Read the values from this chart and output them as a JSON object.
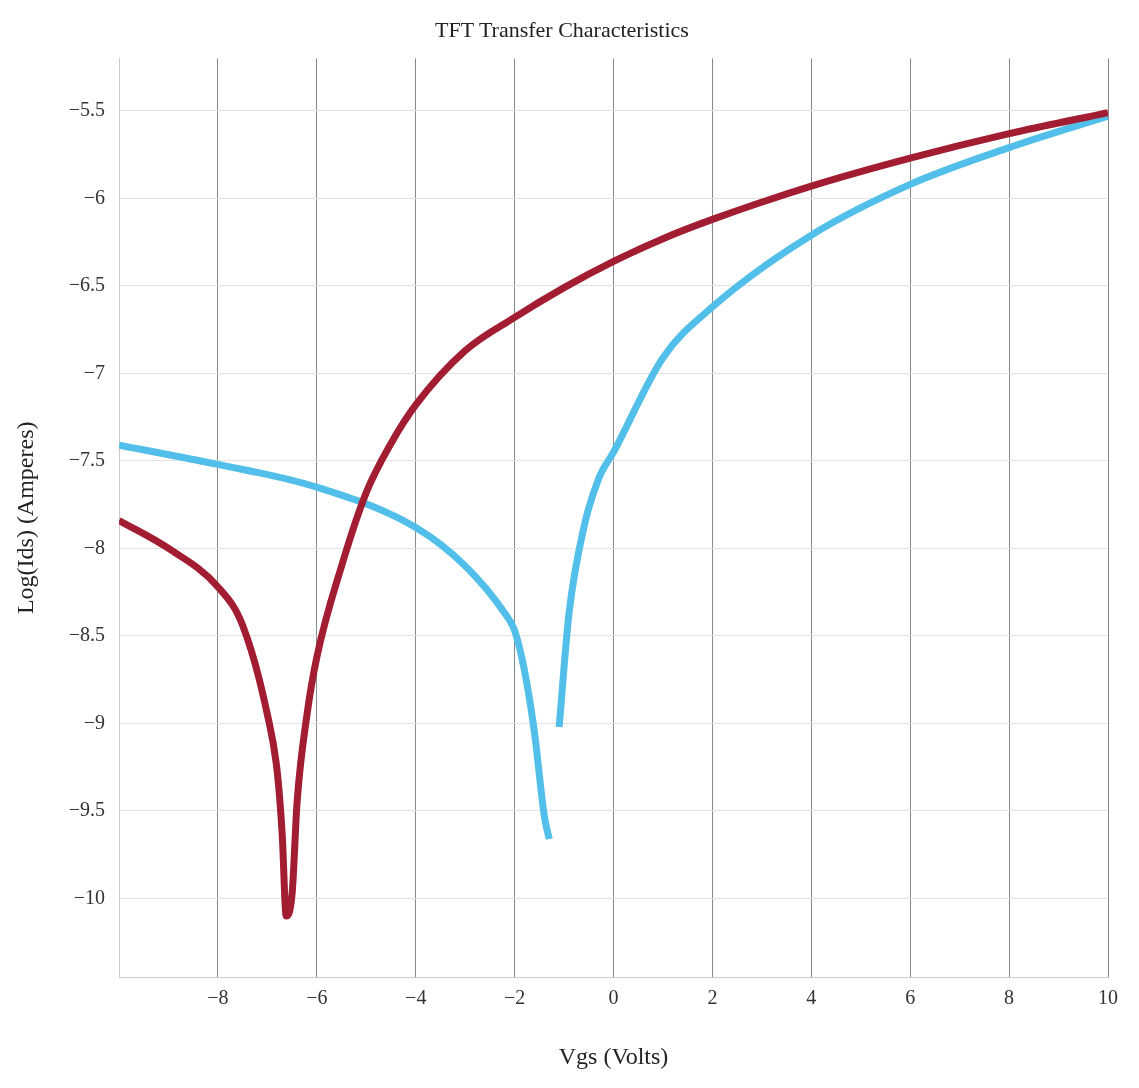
{
  "chart_data": {
    "type": "line",
    "title": "TFT Transfer Characteristics",
    "xlabel": "Vgs (Volts)",
    "ylabel": "Log(Ids) (Amperes)",
    "xlim": [
      -10,
      10
    ],
    "xticks": [
      {
        "value": -8,
        "label": "−8"
      },
      {
        "value": -6,
        "label": "−6"
      },
      {
        "value": -4,
        "label": "−4"
      },
      {
        "value": -2,
        "label": "−2"
      },
      {
        "value": 0,
        "label": "0"
      },
      {
        "value": 2,
        "label": "2"
      },
      {
        "value": 4,
        "label": "4"
      },
      {
        "value": 6,
        "label": "6"
      },
      {
        "value": 8,
        "label": "8"
      },
      {
        "value": 10,
        "label": "10"
      }
    ],
    "ylim": [
      -10.45,
      -5.2
    ],
    "yticks": [
      {
        "value": -5.5,
        "label": "−5.5"
      },
      {
        "value": -6,
        "label": "−6"
      },
      {
        "value": -6.5,
        "label": "−6.5"
      },
      {
        "value": -7,
        "label": "−7"
      },
      {
        "value": -7.5,
        "label": "−7.5"
      },
      {
        "value": -8,
        "label": "−8"
      },
      {
        "value": -8.5,
        "label": "−8.5"
      },
      {
        "value": -9,
        "label": "−9"
      },
      {
        "value": -9.5,
        "label": "−9.5"
      },
      {
        "value": -10,
        "label": "−10"
      }
    ],
    "grid": true,
    "legend": false,
    "marker": "none",
    "line_style": "solid",
    "series": [
      {
        "color": "#a21c32",
        "x": [
          -10,
          -9,
          -8,
          -7.5,
          -7,
          -6.8,
          -6.7,
          -6.62,
          -6.5,
          -6.4,
          -6.2,
          -6,
          -5.5,
          -5,
          -4.5,
          -4,
          -3,
          -2,
          -1,
          0,
          1,
          2,
          4,
          6,
          8,
          10
        ],
        "values": [
          -7.84,
          -8.0,
          -8.22,
          -8.44,
          -8.95,
          -9.28,
          -9.64,
          -10.1,
          -9.97,
          -9.45,
          -8.95,
          -8.62,
          -8.1,
          -7.68,
          -7.4,
          -7.18,
          -6.87,
          -6.68,
          -6.51,
          -6.36,
          -6.23,
          -6.12,
          -5.93,
          -5.77,
          -5.63,
          -5.51
        ]
      },
      {
        "color": "#52bfea",
        "x": [
          -10,
          -8,
          -6,
          -4,
          -3,
          -2.2,
          -2,
          -1.8,
          -1.6,
          -1.4,
          -1.3,
          -1.2,
          -1.1,
          -0.9,
          -0.6,
          -0.3,
          0,
          1,
          2,
          4,
          6,
          8,
          10
        ],
        "values": [
          -7.41,
          -7.52,
          -7.65,
          -7.88,
          -8.1,
          -8.37,
          -8.47,
          -8.7,
          -9.05,
          -9.53,
          -9.66,
          null,
          -9.02,
          -8.37,
          -7.88,
          -7.6,
          -7.45,
          -6.91,
          -6.62,
          -6.21,
          -5.92,
          -5.71,
          -5.53
        ]
      }
    ]
  }
}
